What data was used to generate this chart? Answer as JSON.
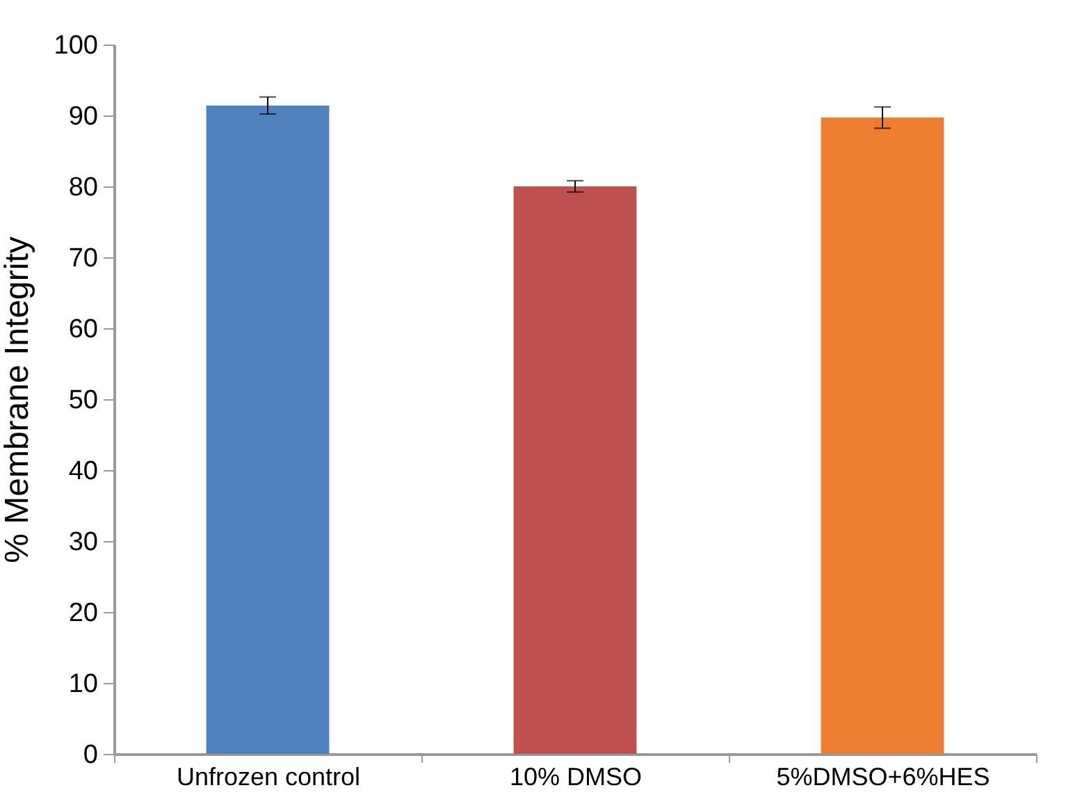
{
  "chart_data": {
    "type": "bar",
    "ylabel": "% Membrane Integrity",
    "categories": [
      "Unfrozen control",
      "10% DMSO",
      "5%DMSO+6%HES"
    ],
    "values": [
      91.4,
      80.0,
      89.7
    ],
    "colors": [
      "#4f81bd",
      "#c0504d",
      "#ed7d31"
    ],
    "errors": [
      1.2,
      0.8,
      1.5
    ],
    "ylim": [
      0,
      100
    ],
    "yticks": [
      0,
      10,
      20,
      30,
      40,
      50,
      60,
      70,
      80,
      90,
      100
    ],
    "grid": false
  }
}
